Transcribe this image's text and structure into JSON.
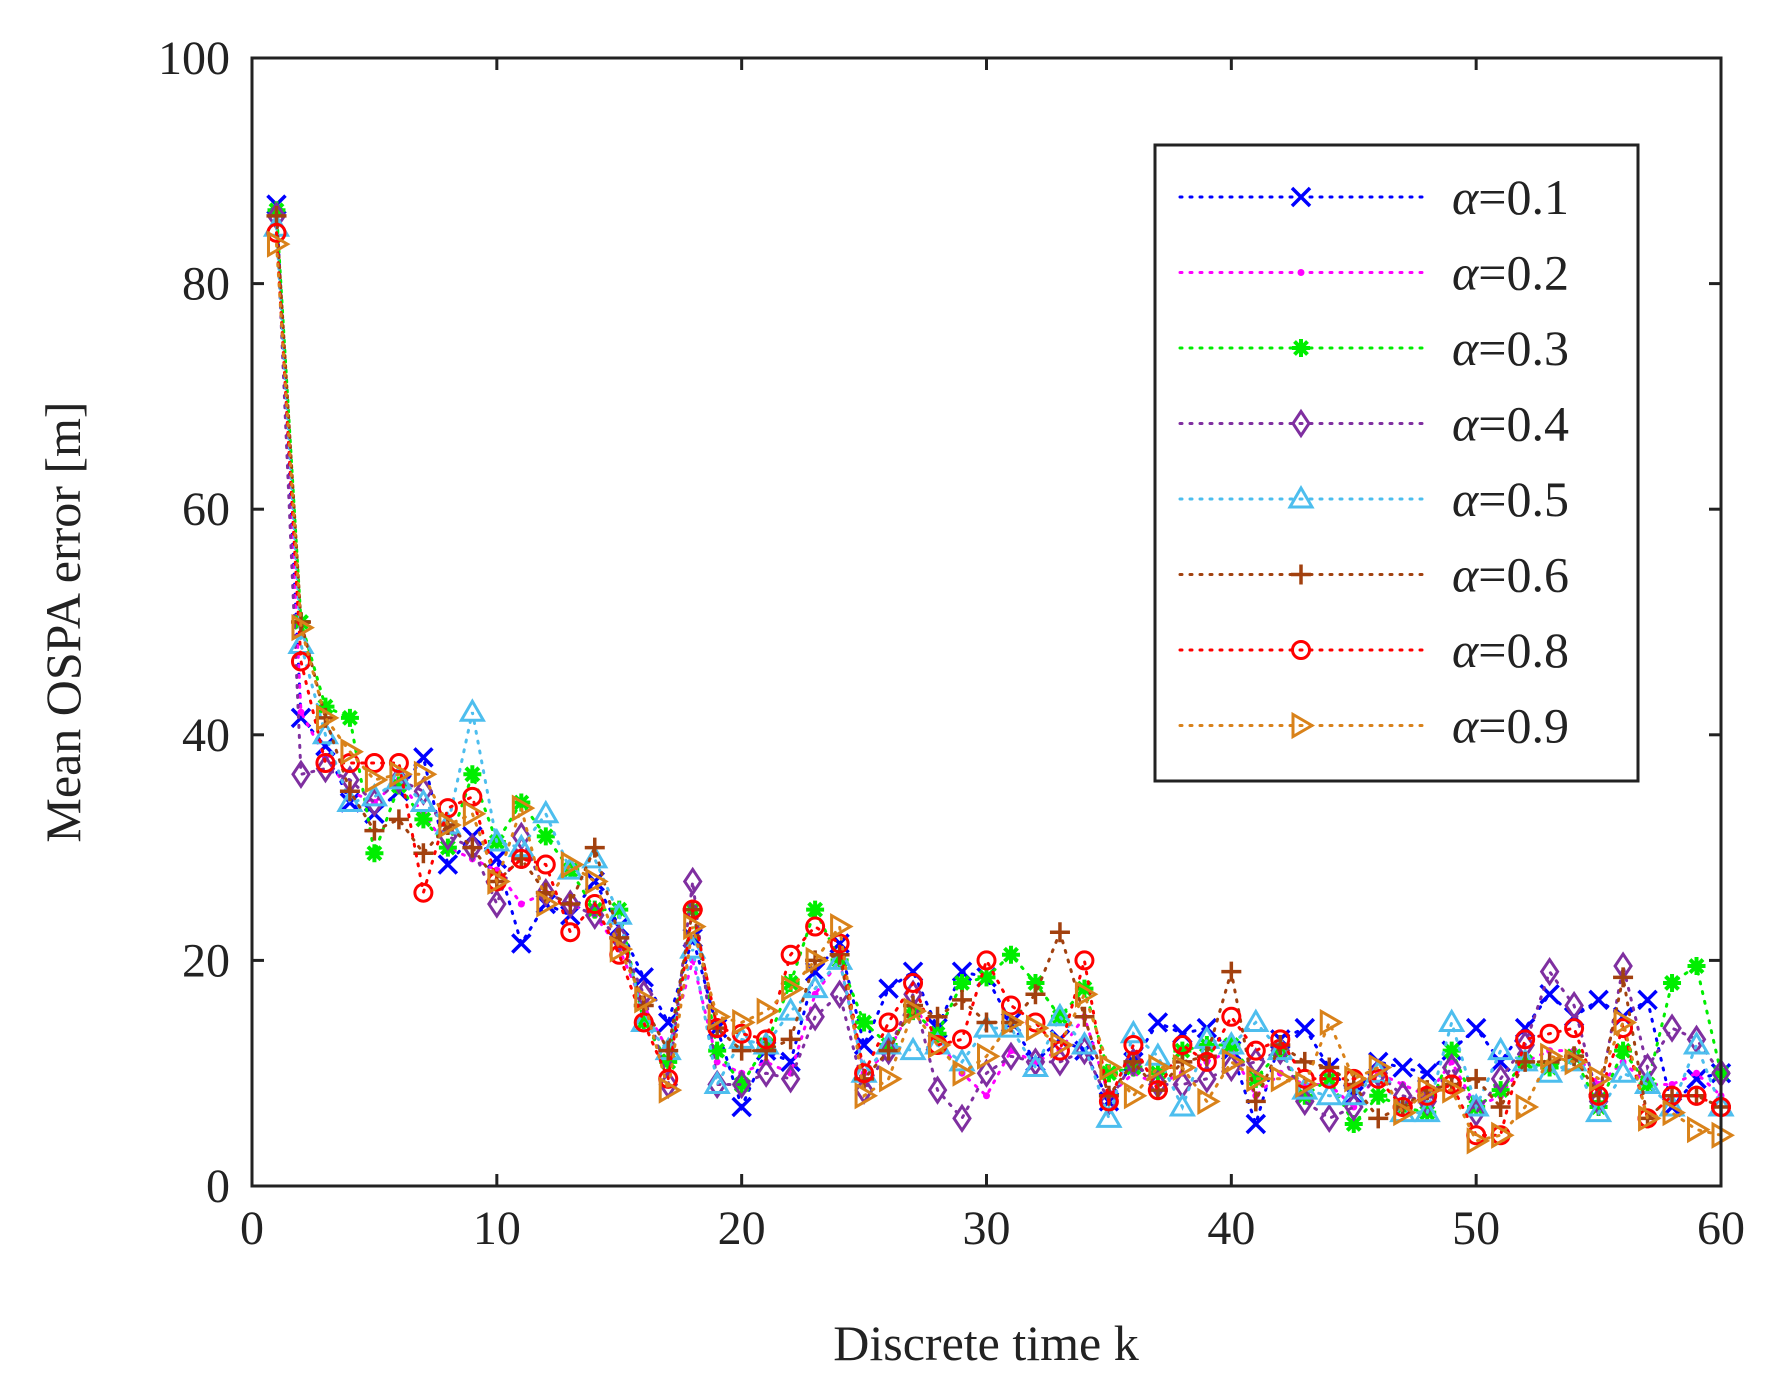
{
  "chart_data": {
    "type": "line",
    "title": "",
    "xlabel": "Discrete time k",
    "ylabel": "Mean OSPA error [m]",
    "xlim": [
      0,
      60
    ],
    "ylim": [
      0,
      100
    ],
    "xticks": [
      0,
      10,
      20,
      30,
      40,
      50,
      60
    ],
    "yticks": [
      0,
      20,
      40,
      60,
      80,
      100
    ],
    "grid": false,
    "legend_position": "top-right",
    "x": [
      1,
      2,
      3,
      4,
      5,
      6,
      7,
      8,
      9,
      10,
      11,
      12,
      13,
      14,
      15,
      16,
      17,
      18,
      19,
      20,
      21,
      22,
      23,
      24,
      25,
      26,
      27,
      28,
      29,
      30,
      31,
      32,
      33,
      34,
      35,
      36,
      37,
      38,
      39,
      40,
      41,
      42,
      43,
      44,
      45,
      46,
      47,
      48,
      49,
      50,
      51,
      52,
      53,
      54,
      55,
      56,
      57,
      58,
      59,
      60
    ],
    "series": [
      {
        "name": "α=0.1",
        "legend_symbol": "α",
        "legend_value": "=0.1",
        "color": "#0000ff",
        "marker": "x",
        "values": [
          87,
          41.5,
          39,
          34,
          33,
          35,
          38,
          28.5,
          31,
          29,
          21.5,
          25,
          24,
          27,
          23,
          18.5,
          14.5,
          22,
          14,
          7,
          12,
          11,
          19,
          21.5,
          12.5,
          17.5,
          19,
          14,
          19,
          18.5,
          14.5,
          11,
          13,
          12,
          7.5,
          11,
          14.5,
          13.5,
          14,
          12,
          5.5,
          13,
          14,
          10.5,
          8,
          11,
          10.5,
          10,
          12,
          14,
          11,
          14,
          17,
          15,
          16.5,
          15,
          16.5,
          7,
          9.5,
          10
        ]
      },
      {
        "name": "α=0.2",
        "legend_symbol": "α",
        "legend_value": "=0.2",
        "color": "#ff00ff",
        "marker": "dot",
        "values": [
          86,
          42,
          38,
          35,
          34,
          36,
          33,
          30,
          29,
          28,
          25,
          26,
          25,
          24,
          21,
          16,
          12,
          20,
          11,
          10,
          11,
          10,
          17,
          20,
          10,
          12,
          16,
          13,
          10,
          8,
          12,
          11,
          12,
          15,
          8,
          10,
          9,
          10,
          11,
          12,
          8,
          10,
          9,
          9,
          7,
          10,
          9,
          8,
          11,
          7,
          8,
          11,
          12,
          12,
          9,
          11,
          9,
          9,
          10,
          8
        ]
      },
      {
        "name": "α=0.3",
        "legend_symbol": "α",
        "legend_value": "=0.3",
        "color": "#00ee00",
        "marker": "star",
        "values": [
          86.5,
          50,
          42.5,
          41.5,
          29.5,
          35.5,
          32.5,
          30,
          36.5,
          30.5,
          34,
          31,
          28,
          24.5,
          24.5,
          14.5,
          11,
          24.5,
          12,
          9,
          12.5,
          18,
          24.5,
          20,
          14.5,
          12.5,
          15.5,
          13.5,
          18,
          18.5,
          20.5,
          18,
          15,
          17.5,
          10,
          10.5,
          10,
          12,
          12.5,
          12.5,
          9.5,
          12,
          8,
          9.5,
          5.5,
          8,
          7,
          6.5,
          12,
          7,
          8.5,
          11,
          10.5,
          11.5,
          7,
          12,
          9,
          18,
          19.5,
          10
        ]
      },
      {
        "name": "α=0.4",
        "legend_symbol": "α",
        "legend_value": "=0.4",
        "color": "#7f2fa0",
        "marker": "diamond",
        "values": [
          86,
          36.5,
          37,
          36,
          34,
          36,
          35,
          31,
          30,
          25,
          31,
          26,
          25,
          24,
          22,
          17,
          9,
          27,
          9,
          9,
          10,
          9.5,
          15,
          17,
          8.5,
          12,
          17,
          8.5,
          6,
          10,
          11.5,
          11,
          11,
          12,
          7.5,
          11,
          9,
          9,
          9.5,
          10.5,
          11,
          12,
          7.5,
          6,
          7,
          10,
          8,
          7.5,
          10.5,
          6.5,
          9.5,
          12.5,
          19,
          16,
          7.5,
          19.5,
          10.5,
          14,
          13,
          10
        ]
      },
      {
        "name": "α=0.5",
        "legend_symbol": "α",
        "legend_value": "=0.5",
        "color": "#4dbeee",
        "marker": "triangle",
        "values": [
          85,
          48,
          40,
          34,
          34.5,
          36,
          34,
          32,
          42,
          30.5,
          30,
          33,
          28,
          29,
          24,
          14.5,
          12,
          21,
          9,
          13,
          12.5,
          15.5,
          17.5,
          20,
          10,
          12.5,
          12,
          12.5,
          11,
          14,
          14,
          10.5,
          15,
          12.5,
          6,
          13.5,
          11.5,
          7,
          13,
          12.5,
          14.5,
          12,
          8.5,
          8,
          8,
          10,
          6.5,
          6.5,
          14.5,
          7,
          12,
          11,
          10,
          11,
          6.5,
          10,
          9,
          7,
          12.5,
          7
        ]
      },
      {
        "name": "α=0.6",
        "legend_symbol": "α",
        "legend_value": "=0.6",
        "color": "#a2410f",
        "marker": "plus",
        "values": [
          86,
          50,
          41.5,
          35,
          31.5,
          32.5,
          29.5,
          32,
          30,
          27,
          29,
          26,
          25,
          30,
          22,
          16,
          12,
          24.5,
          14,
          12,
          12,
          13,
          20,
          20.5,
          9.5,
          12,
          16,
          15,
          16.5,
          14.5,
          14.5,
          17,
          22.5,
          15,
          8,
          11,
          8.5,
          11,
          11.5,
          19,
          7.5,
          12.5,
          11,
          10.5,
          9,
          6,
          7,
          8.5,
          9,
          9.5,
          7,
          11,
          11,
          11.5,
          8,
          18.5,
          6,
          8,
          8,
          7
        ]
      },
      {
        "name": "α=0.8",
        "legend_symbol": "α",
        "legend_value": "=0.8",
        "color": "#ff0000",
        "marker": "circle",
        "values": [
          84.5,
          46.5,
          37.5,
          37.5,
          37.5,
          37.5,
          26,
          33.5,
          34.5,
          27,
          29,
          28.5,
          22.5,
          25,
          20.5,
          14.5,
          9.5,
          24.5,
          14,
          13.5,
          13,
          20.5,
          23,
          21.5,
          10,
          14.5,
          18,
          12.5,
          13,
          20,
          16,
          14.5,
          12,
          20,
          7.5,
          12.5,
          8.5,
          12.5,
          11,
          15,
          12,
          13,
          9.5,
          9.5,
          9.5,
          9.5,
          7,
          8,
          9,
          4.5,
          4.5,
          13,
          13.5,
          14,
          8,
          14,
          6,
          8,
          8,
          7
        ]
      },
      {
        "name": "α=0.9",
        "legend_symbol": "α",
        "legend_value": "=0.9",
        "color": "#d9821a",
        "marker": "triangle-right",
        "values": [
          83.5,
          49.5,
          41.5,
          38.5,
          36,
          36.5,
          36.5,
          32,
          33,
          27,
          33.5,
          25,
          28.5,
          27,
          21,
          16.5,
          8.5,
          23,
          15,
          14.5,
          15.5,
          17.5,
          20,
          23,
          8,
          9.5,
          15.5,
          12.5,
          10,
          11.5,
          14.5,
          14,
          12.5,
          17,
          10.5,
          8,
          10.5,
          10.5,
          7.5,
          11,
          9.5,
          9.5,
          9,
          14.5,
          9.5,
          10.5,
          6.5,
          8.5,
          8.5,
          4,
          4.5,
          7,
          11.5,
          11,
          9.5,
          14.5,
          6,
          6.5,
          5,
          4.5
        ]
      }
    ]
  }
}
